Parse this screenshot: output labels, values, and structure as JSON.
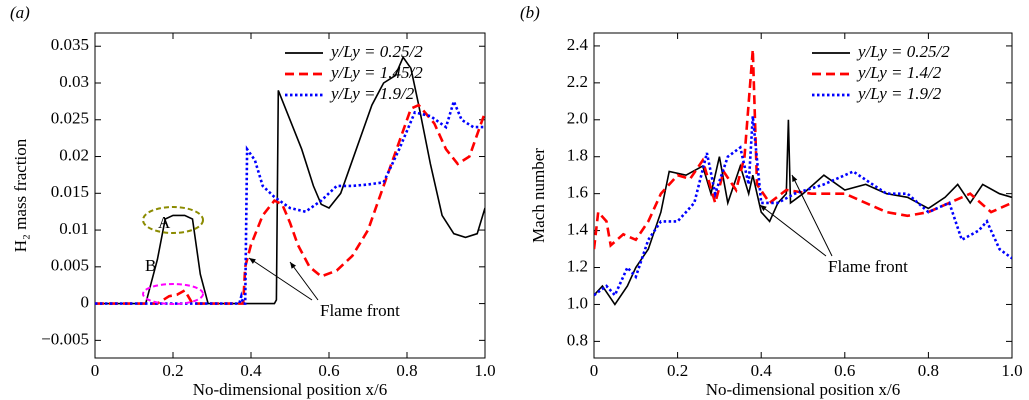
{
  "chart_data": [
    {
      "type": "line",
      "panel_label": "(a)",
      "xlabel": "No-dimensional position  x/6",
      "ylabel": "H₂ mass fraction",
      "xlim": [
        0,
        1
      ],
      "ylim": [
        -0.0074,
        0.0368
      ],
      "xticks": [
        0,
        0.2,
        0.4,
        0.6,
        0.8,
        {
          "value": 1,
          "label": "1.0"
        }
      ],
      "yticks": [
        {
          "value": -0.005,
          "label": "−0.005"
        },
        0,
        0.005,
        0.01,
        0.015,
        0.02,
        0.025,
        0.03,
        0.035
      ],
      "legend": "upper right",
      "annotations": [
        "A",
        "B",
        "Flame front"
      ],
      "series": [
        {
          "name": "y/Ly = 0.25/2",
          "color": "#000000",
          "linestyle": "solid",
          "x": [
            0,
            0.13,
            0.16,
            0.18,
            0.2,
            0.23,
            0.25,
            0.27,
            0.29,
            0.46,
            0.465,
            0.47,
            0.5,
            0.53,
            0.56,
            0.58,
            0.6,
            0.63,
            0.67,
            0.71,
            0.74,
            0.77,
            0.79,
            0.81,
            0.83,
            0.86,
            0.89,
            0.92,
            0.95,
            0.98,
            1.0
          ],
          "values": [
            0,
            0,
            0.006,
            0.0115,
            0.012,
            0.012,
            0.0115,
            0.004,
            0,
            0,
            0.0005,
            0.029,
            0.025,
            0.021,
            0.016,
            0.0135,
            0.013,
            0.015,
            0.021,
            0.027,
            0.03,
            0.031,
            0.0335,
            0.032,
            0.027,
            0.019,
            0.012,
            0.0095,
            0.009,
            0.0095,
            0.013
          ]
        },
        {
          "name": "y/Ly = 1.45/2",
          "color": "#ff0000",
          "linestyle": "dashed",
          "x": [
            0,
            0.16,
            0.19,
            0.21,
            0.23,
            0.25,
            0.38,
            0.385,
            0.4,
            0.43,
            0.46,
            0.48,
            0.5,
            0.52,
            0.55,
            0.58,
            0.62,
            0.66,
            0.7,
            0.74,
            0.78,
            0.81,
            0.83,
            0.87,
            0.9,
            0.93,
            0.96,
            1.0
          ],
          "values": [
            0,
            0,
            0.001,
            0.0012,
            0.0018,
            0,
            0,
            0.005,
            0.008,
            0.012,
            0.014,
            0.0135,
            0.011,
            0.008,
            0.005,
            0.0037,
            0.0045,
            0.0065,
            0.01,
            0.016,
            0.022,
            0.0265,
            0.027,
            0.0245,
            0.021,
            0.019,
            0.02,
            0.026
          ]
        },
        {
          "name": "y/Ly = 1.9/2",
          "color": "#0000ff",
          "linestyle": "dotted",
          "x": [
            0,
            0.37,
            0.375,
            0.38,
            0.385,
            0.39,
            0.41,
            0.43,
            0.46,
            0.5,
            0.54,
            0.58,
            0.62,
            0.66,
            0.7,
            0.74,
            0.78,
            0.82,
            0.86,
            0.9,
            0.92,
            0.94,
            0.97,
            1.0
          ],
          "values": [
            0,
            0,
            0.001,
            0,
            0,
            0.021,
            0.0195,
            0.016,
            0.0145,
            0.013,
            0.0125,
            0.014,
            0.016,
            0.016,
            0.0162,
            0.0165,
            0.021,
            0.026,
            0.0255,
            0.024,
            0.0275,
            0.025,
            0.024,
            0.024
          ]
        }
      ]
    },
    {
      "type": "line",
      "panel_label": "(b)",
      "xlabel": "No-dimensional position  x/6",
      "ylabel": "Mach number",
      "xlim": [
        0,
        1
      ],
      "ylim": [
        0.71,
        2.47
      ],
      "xticks": [
        0,
        0.2,
        0.4,
        0.6,
        0.8,
        {
          "value": 1,
          "label": "1.0"
        }
      ],
      "yticks": [
        0.8,
        {
          "value": 1,
          "label": "1.0"
        },
        1.2,
        1.4,
        1.6,
        1.8,
        {
          "value": 2,
          "label": "2.0"
        },
        2.2,
        2.4
      ],
      "legend": "upper right",
      "annotations": [
        "Flame front"
      ],
      "series": [
        {
          "name": "y/Ly = 0.25/2",
          "color": "#000000",
          "linestyle": "solid",
          "x": [
            0,
            0.02,
            0.05,
            0.08,
            0.1,
            0.13,
            0.16,
            0.18,
            0.22,
            0.26,
            0.28,
            0.3,
            0.32,
            0.35,
            0.37,
            0.38,
            0.4,
            0.42,
            0.44,
            0.46,
            0.465,
            0.47,
            0.5,
            0.55,
            0.6,
            0.65,
            0.7,
            0.75,
            0.8,
            0.84,
            0.87,
            0.9,
            0.93,
            0.97,
            1.0
          ],
          "values": [
            1.05,
            1.1,
            1.0,
            1.1,
            1.2,
            1.3,
            1.5,
            1.72,
            1.7,
            1.75,
            1.6,
            1.8,
            1.55,
            1.75,
            1.6,
            1.7,
            1.5,
            1.45,
            1.55,
            1.6,
            2.0,
            1.55,
            1.6,
            1.7,
            1.62,
            1.65,
            1.6,
            1.58,
            1.52,
            1.58,
            1.65,
            1.55,
            1.65,
            1.6,
            1.58
          ]
        },
        {
          "name": "y/Ly = 1.4/2",
          "color": "#ff0000",
          "linestyle": "dashed",
          "x": [
            0,
            0.01,
            0.03,
            0.04,
            0.07,
            0.1,
            0.13,
            0.16,
            0.2,
            0.23,
            0.26,
            0.29,
            0.31,
            0.34,
            0.36,
            0.38,
            0.39,
            0.42,
            0.46,
            0.52,
            0.6,
            0.65,
            0.7,
            0.75,
            0.8,
            0.85,
            0.9,
            0.95,
            1.0
          ],
          "values": [
            1.3,
            1.5,
            1.45,
            1.32,
            1.38,
            1.35,
            1.45,
            1.6,
            1.7,
            1.68,
            1.78,
            1.55,
            1.72,
            1.62,
            1.8,
            2.38,
            1.65,
            1.55,
            1.62,
            1.6,
            1.6,
            1.55,
            1.5,
            1.48,
            1.5,
            1.55,
            1.6,
            1.5,
            1.55
          ]
        },
        {
          "name": "y/Ly = 1.9/2",
          "color": "#0000ff",
          "linestyle": "dotted",
          "x": [
            0,
            0.03,
            0.05,
            0.08,
            0.1,
            0.13,
            0.16,
            0.2,
            0.24,
            0.27,
            0.29,
            0.32,
            0.35,
            0.37,
            0.38,
            0.4,
            0.44,
            0.48,
            0.55,
            0.62,
            0.7,
            0.75,
            0.8,
            0.85,
            0.88,
            0.92,
            0.94,
            0.97,
            1.0
          ],
          "values": [
            1.05,
            1.1,
            1.05,
            1.2,
            1.15,
            1.35,
            1.45,
            1.45,
            1.55,
            1.82,
            1.6,
            1.8,
            1.85,
            1.65,
            2.02,
            1.55,
            1.55,
            1.6,
            1.65,
            1.72,
            1.6,
            1.6,
            1.5,
            1.55,
            1.35,
            1.4,
            1.45,
            1.3,
            1.25
          ]
        }
      ]
    }
  ]
}
